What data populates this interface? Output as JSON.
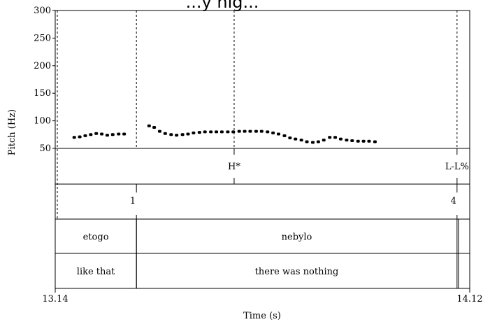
{
  "chart_data": {
    "type": "scatter",
    "title": "...y nig...",
    "xlabel": "Time (s)",
    "ylabel": "Pitch (Hz)",
    "xlim": [
      13.14,
      14.12
    ],
    "ylim": [
      50,
      300
    ],
    "x_tick_labels": [
      "13.14",
      "14.12"
    ],
    "y_ticks": [
      50,
      100,
      150,
      200,
      250,
      300
    ],
    "grid": false,
    "series": [
      {
        "values": [
          {
            "x": 13.185,
            "y": 70
          },
          {
            "x": 13.198,
            "y": 71
          },
          {
            "x": 13.211,
            "y": 73
          },
          {
            "x": 13.224,
            "y": 75
          },
          {
            "x": 13.237,
            "y": 77
          },
          {
            "x": 13.25,
            "y": 76
          },
          {
            "x": 13.263,
            "y": 74
          },
          {
            "x": 13.276,
            "y": 75
          },
          {
            "x": 13.29,
            "y": 76
          },
          {
            "x": 13.303,
            "y": 76
          },
          {
            "x": 13.362,
            "y": 91
          },
          {
            "x": 13.374,
            "y": 88
          },
          {
            "x": 13.387,
            "y": 81
          },
          {
            "x": 13.4,
            "y": 77
          },
          {
            "x": 13.414,
            "y": 75
          },
          {
            "x": 13.427,
            "y": 74
          },
          {
            "x": 13.441,
            "y": 75
          },
          {
            "x": 13.454,
            "y": 76
          },
          {
            "x": 13.467,
            "y": 78
          },
          {
            "x": 13.481,
            "y": 79
          },
          {
            "x": 13.494,
            "y": 80
          },
          {
            "x": 13.508,
            "y": 80
          },
          {
            "x": 13.521,
            "y": 80
          },
          {
            "x": 13.534,
            "y": 80
          },
          {
            "x": 13.548,
            "y": 80
          },
          {
            "x": 13.561,
            "y": 80
          },
          {
            "x": 13.575,
            "y": 81
          },
          {
            "x": 13.588,
            "y": 81
          },
          {
            "x": 13.601,
            "y": 81
          },
          {
            "x": 13.615,
            "y": 81
          },
          {
            "x": 13.628,
            "y": 81
          },
          {
            "x": 13.642,
            "y": 80
          },
          {
            "x": 13.655,
            "y": 78
          },
          {
            "x": 13.668,
            "y": 76
          },
          {
            "x": 13.682,
            "y": 73
          },
          {
            "x": 13.695,
            "y": 69
          },
          {
            "x": 13.708,
            "y": 67
          },
          {
            "x": 13.722,
            "y": 65
          },
          {
            "x": 13.735,
            "y": 62
          },
          {
            "x": 13.749,
            "y": 61
          },
          {
            "x": 13.762,
            "y": 62
          },
          {
            "x": 13.775,
            "y": 65
          },
          {
            "x": 13.789,
            "y": 70
          },
          {
            "x": 13.802,
            "y": 70
          },
          {
            "x": 13.815,
            "y": 67
          },
          {
            "x": 13.829,
            "y": 65
          },
          {
            "x": 13.842,
            "y": 64
          },
          {
            "x": 13.856,
            "y": 63
          },
          {
            "x": 13.869,
            "y": 63
          },
          {
            "x": 13.882,
            "y": 63
          },
          {
            "x": 13.896,
            "y": 62
          }
        ]
      }
    ],
    "boundaries": [
      13.14,
      13.332,
      13.563,
      14.09,
      14.12
    ],
    "tiers": [
      {
        "labels": [
          {
            "text": "H*",
            "time": 13.563
          },
          {
            "text": "L-L%",
            "time": 14.09
          }
        ]
      },
      {
        "labels": [
          {
            "text": "1",
            "time": 13.332
          },
          {
            "text": "4",
            "time": 14.09
          }
        ]
      },
      {
        "labels": [
          {
            "text": "etogo",
            "start": 13.14,
            "end": 13.332
          },
          {
            "text": "nebylo",
            "start": 13.332,
            "end": 14.09
          }
        ]
      },
      {
        "labels": [
          {
            "text": "like that",
            "start": 13.14,
            "end": 13.332
          },
          {
            "text": "there was nothing",
            "start": 13.332,
            "end": 14.09
          }
        ]
      }
    ]
  }
}
